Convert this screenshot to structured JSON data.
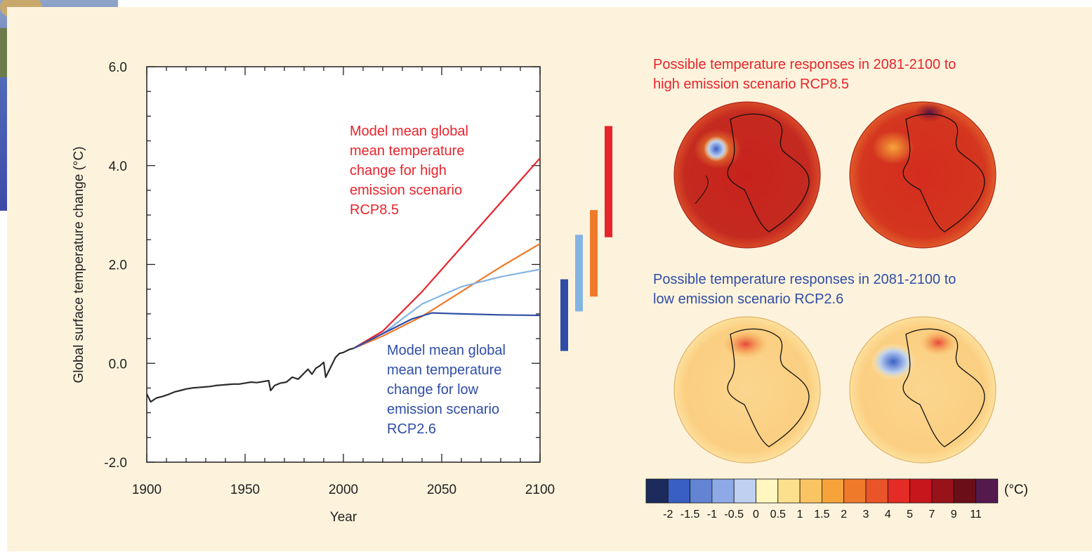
{
  "chart_data": [
    {
      "type": "line",
      "title": "",
      "xlabel": "Year",
      "ylabel": "Global surface temperature change (°C)",
      "xlim": [
        1900,
        2100
      ],
      "ylim": [
        -2.0,
        6.0
      ],
      "x_ticks": [
        "1900",
        "1950",
        "2000",
        "2050",
        "2100"
      ],
      "y_ticks": [
        "-2.0",
        "0.0",
        "2.0",
        "4.0",
        "6.0"
      ],
      "grid": false,
      "series": [
        {
          "color": "#2b2b2b",
          "x": [
            1900,
            1902,
            1905,
            1908,
            1911,
            1914,
            1917,
            1920,
            1923,
            1926,
            1929,
            1932,
            1935,
            1938,
            1941,
            1944,
            1947,
            1950,
            1953,
            1956,
            1959,
            1962,
            1963,
            1965,
            1968,
            1971,
            1974,
            1977,
            1980,
            1982,
            1984,
            1986,
            1988,
            1990,
            1991,
            1993,
            1996,
            1998,
            2000,
            2003,
            2005
          ],
          "y": [
            -0.62,
            -0.78,
            -0.7,
            -0.67,
            -0.63,
            -0.58,
            -0.55,
            -0.52,
            -0.5,
            -0.49,
            -0.48,
            -0.47,
            -0.45,
            -0.44,
            -0.43,
            -0.42,
            -0.42,
            -0.4,
            -0.38,
            -0.39,
            -0.37,
            -0.35,
            -0.55,
            -0.45,
            -0.4,
            -0.38,
            -0.28,
            -0.32,
            -0.2,
            -0.12,
            -0.22,
            -0.1,
            -0.05,
            0.02,
            -0.28,
            -0.12,
            0.12,
            0.2,
            0.22,
            0.28,
            0.3
          ]
        },
        {
          "color": "#e8242c",
          "x": [
            2005,
            2020,
            2040,
            2060,
            2080,
            2100
          ],
          "y": [
            0.3,
            0.65,
            1.45,
            2.35,
            3.25,
            4.15
          ]
        },
        {
          "color": "#f07a2c",
          "x": [
            2005,
            2020,
            2040,
            2060,
            2080,
            2100
          ],
          "y": [
            0.3,
            0.55,
            0.95,
            1.45,
            1.95,
            2.42
          ]
        },
        {
          "color": "#84b4e3",
          "x": [
            2005,
            2020,
            2040,
            2060,
            2080,
            2100
          ],
          "y": [
            0.3,
            0.6,
            1.2,
            1.55,
            1.75,
            1.9
          ]
        },
        {
          "color": "#2f4da6",
          "x": [
            2005,
            2020,
            2035,
            2045,
            2060,
            2080,
            2100
          ],
          "y": [
            0.3,
            0.6,
            0.9,
            1.02,
            1.0,
            0.98,
            0.97
          ]
        }
      ],
      "range_bars": [
        {
          "color": "#2f4da6",
          "low": 0.25,
          "high": 1.7
        },
        {
          "color": "#84b4e3",
          "low": 1.05,
          "high": 2.6
        },
        {
          "color": "#f07a2c",
          "low": 1.35,
          "high": 3.1
        },
        {
          "color": "#e8242c",
          "low": 2.55,
          "high": 4.8
        }
      ],
      "annotations": {
        "high": [
          "Model mean global",
          "mean temperature",
          "change for high",
          "emission scenario",
          "RCP8.5"
        ],
        "low": [
          "Model mean global",
          "mean temperature",
          "change for low",
          "emission scenario",
          "RCP2.6"
        ]
      }
    },
    {
      "type": "heatmap",
      "title_high": [
        "Possible temperature responses in 2081-2100 to",
        "high emission scenario RCP8.5"
      ],
      "title_low": [
        "Possible temperature responses in 2081-2100 to",
        "low emission scenario RCP2.6"
      ],
      "colorbar": {
        "unit": "(°C)",
        "tick_labels": [
          "-2",
          "-1.5",
          "-1",
          "-0.5",
          "0",
          "0.5",
          "1",
          "1.5",
          "2",
          "3",
          "4",
          "5",
          "7",
          "9",
          "11"
        ],
        "colors": [
          "#1c2b5c",
          "#3a5fc4",
          "#6384d3",
          "#8eaae6",
          "#bfd0f1",
          "#fff6c0",
          "#fde08d",
          "#fbc462",
          "#f6a43a",
          "#f07a2c",
          "#e95529",
          "#e42b25",
          "#c7161c",
          "#98121a",
          "#6a0f18",
          "#541a4e"
        ]
      },
      "globes": [
        {
          "scenario": "RCP8.5",
          "base_color": "#c8221c"
        },
        {
          "scenario": "RCP8.5",
          "base_color": "#d6301f"
        },
        {
          "scenario": "RCP2.6",
          "base_color": "#fcd48c"
        },
        {
          "scenario": "RCP2.6",
          "base_color": "#fcd48c"
        }
      ]
    }
  ]
}
